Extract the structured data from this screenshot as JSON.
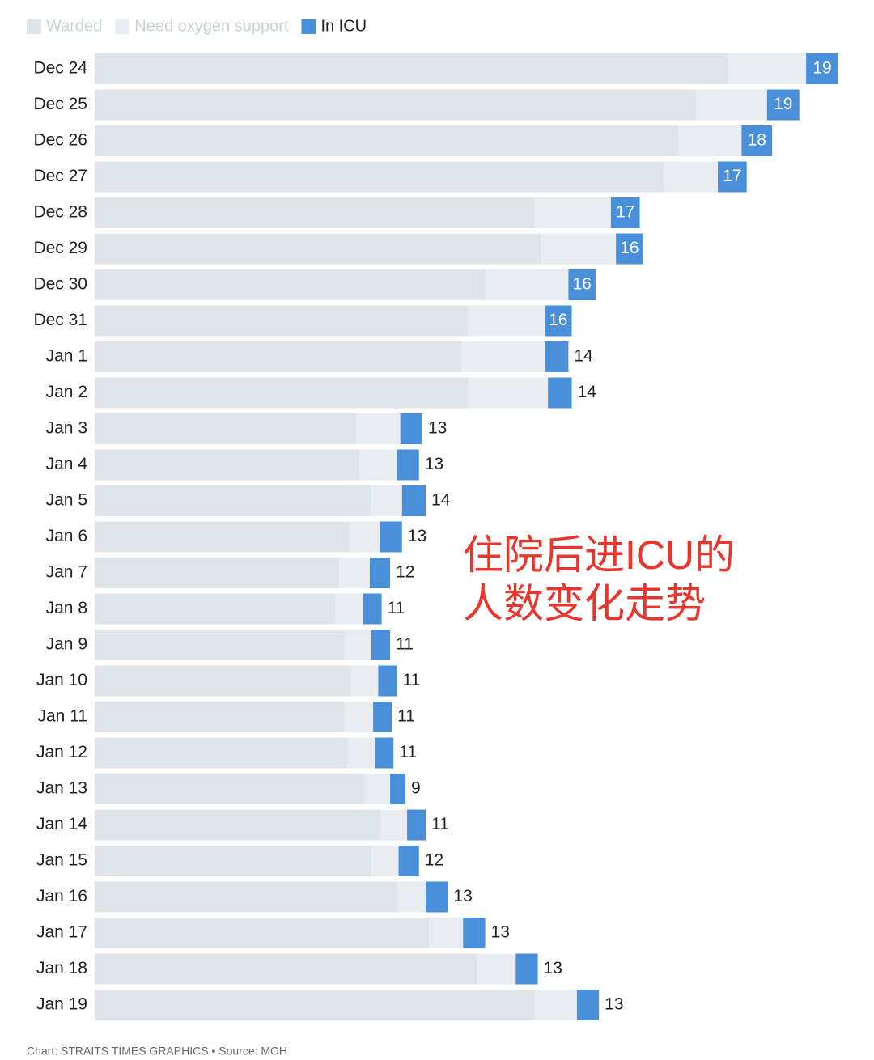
{
  "chart_data": {
    "type": "stacked-bar-horizontal",
    "categories": [
      "Dec 24",
      "Dec 25",
      "Dec 26",
      "Dec 27",
      "Dec 28",
      "Dec 29",
      "Dec 30",
      "Dec 31",
      "Jan 1",
      "Jan 2",
      "Jan 3",
      "Jan 4",
      "Jan 5",
      "Jan 6",
      "Jan 7",
      "Jan 8",
      "Jan 9",
      "Jan 10",
      "Jan 11",
      "Jan 12",
      "Jan 13",
      "Jan 14",
      "Jan 15",
      "Jan 16",
      "Jan 17",
      "Jan 18",
      "Jan 19"
    ],
    "series": [
      {
        "name": "Warded",
        "color": "#dfe4ea",
        "values": [
          373,
          354,
          344,
          335,
          259,
          263,
          230,
          220,
          216,
          220,
          154,
          156,
          163,
          150,
          144,
          142,
          147,
          151,
          147,
          149,
          159,
          168,
          163,
          178,
          197,
          225,
          259
        ]
      },
      {
        "name": "Need oxygen support",
        "color": "#e9edf2",
        "values": [
          46,
          42,
          37,
          32,
          45,
          44,
          49,
          45,
          49,
          47,
          26,
          22,
          18,
          18,
          18,
          16,
          16,
          16,
          17,
          16,
          15,
          16,
          16,
          17,
          20,
          23,
          25
        ]
      },
      {
        "name": "In ICU",
        "color": "#4a8fd9",
        "values": [
          19,
          19,
          18,
          17,
          17,
          16,
          16,
          16,
          14,
          14,
          13,
          13,
          14,
          13,
          12,
          11,
          11,
          11,
          11,
          11,
          9,
          11,
          12,
          13,
          13,
          13,
          13
        ]
      }
    ],
    "annotation": [
      "住院后进ICU的",
      "人数变化走势"
    ],
    "footer": "Chart: STRAITS TIMES GRAPHICS • Source: MOH"
  }
}
